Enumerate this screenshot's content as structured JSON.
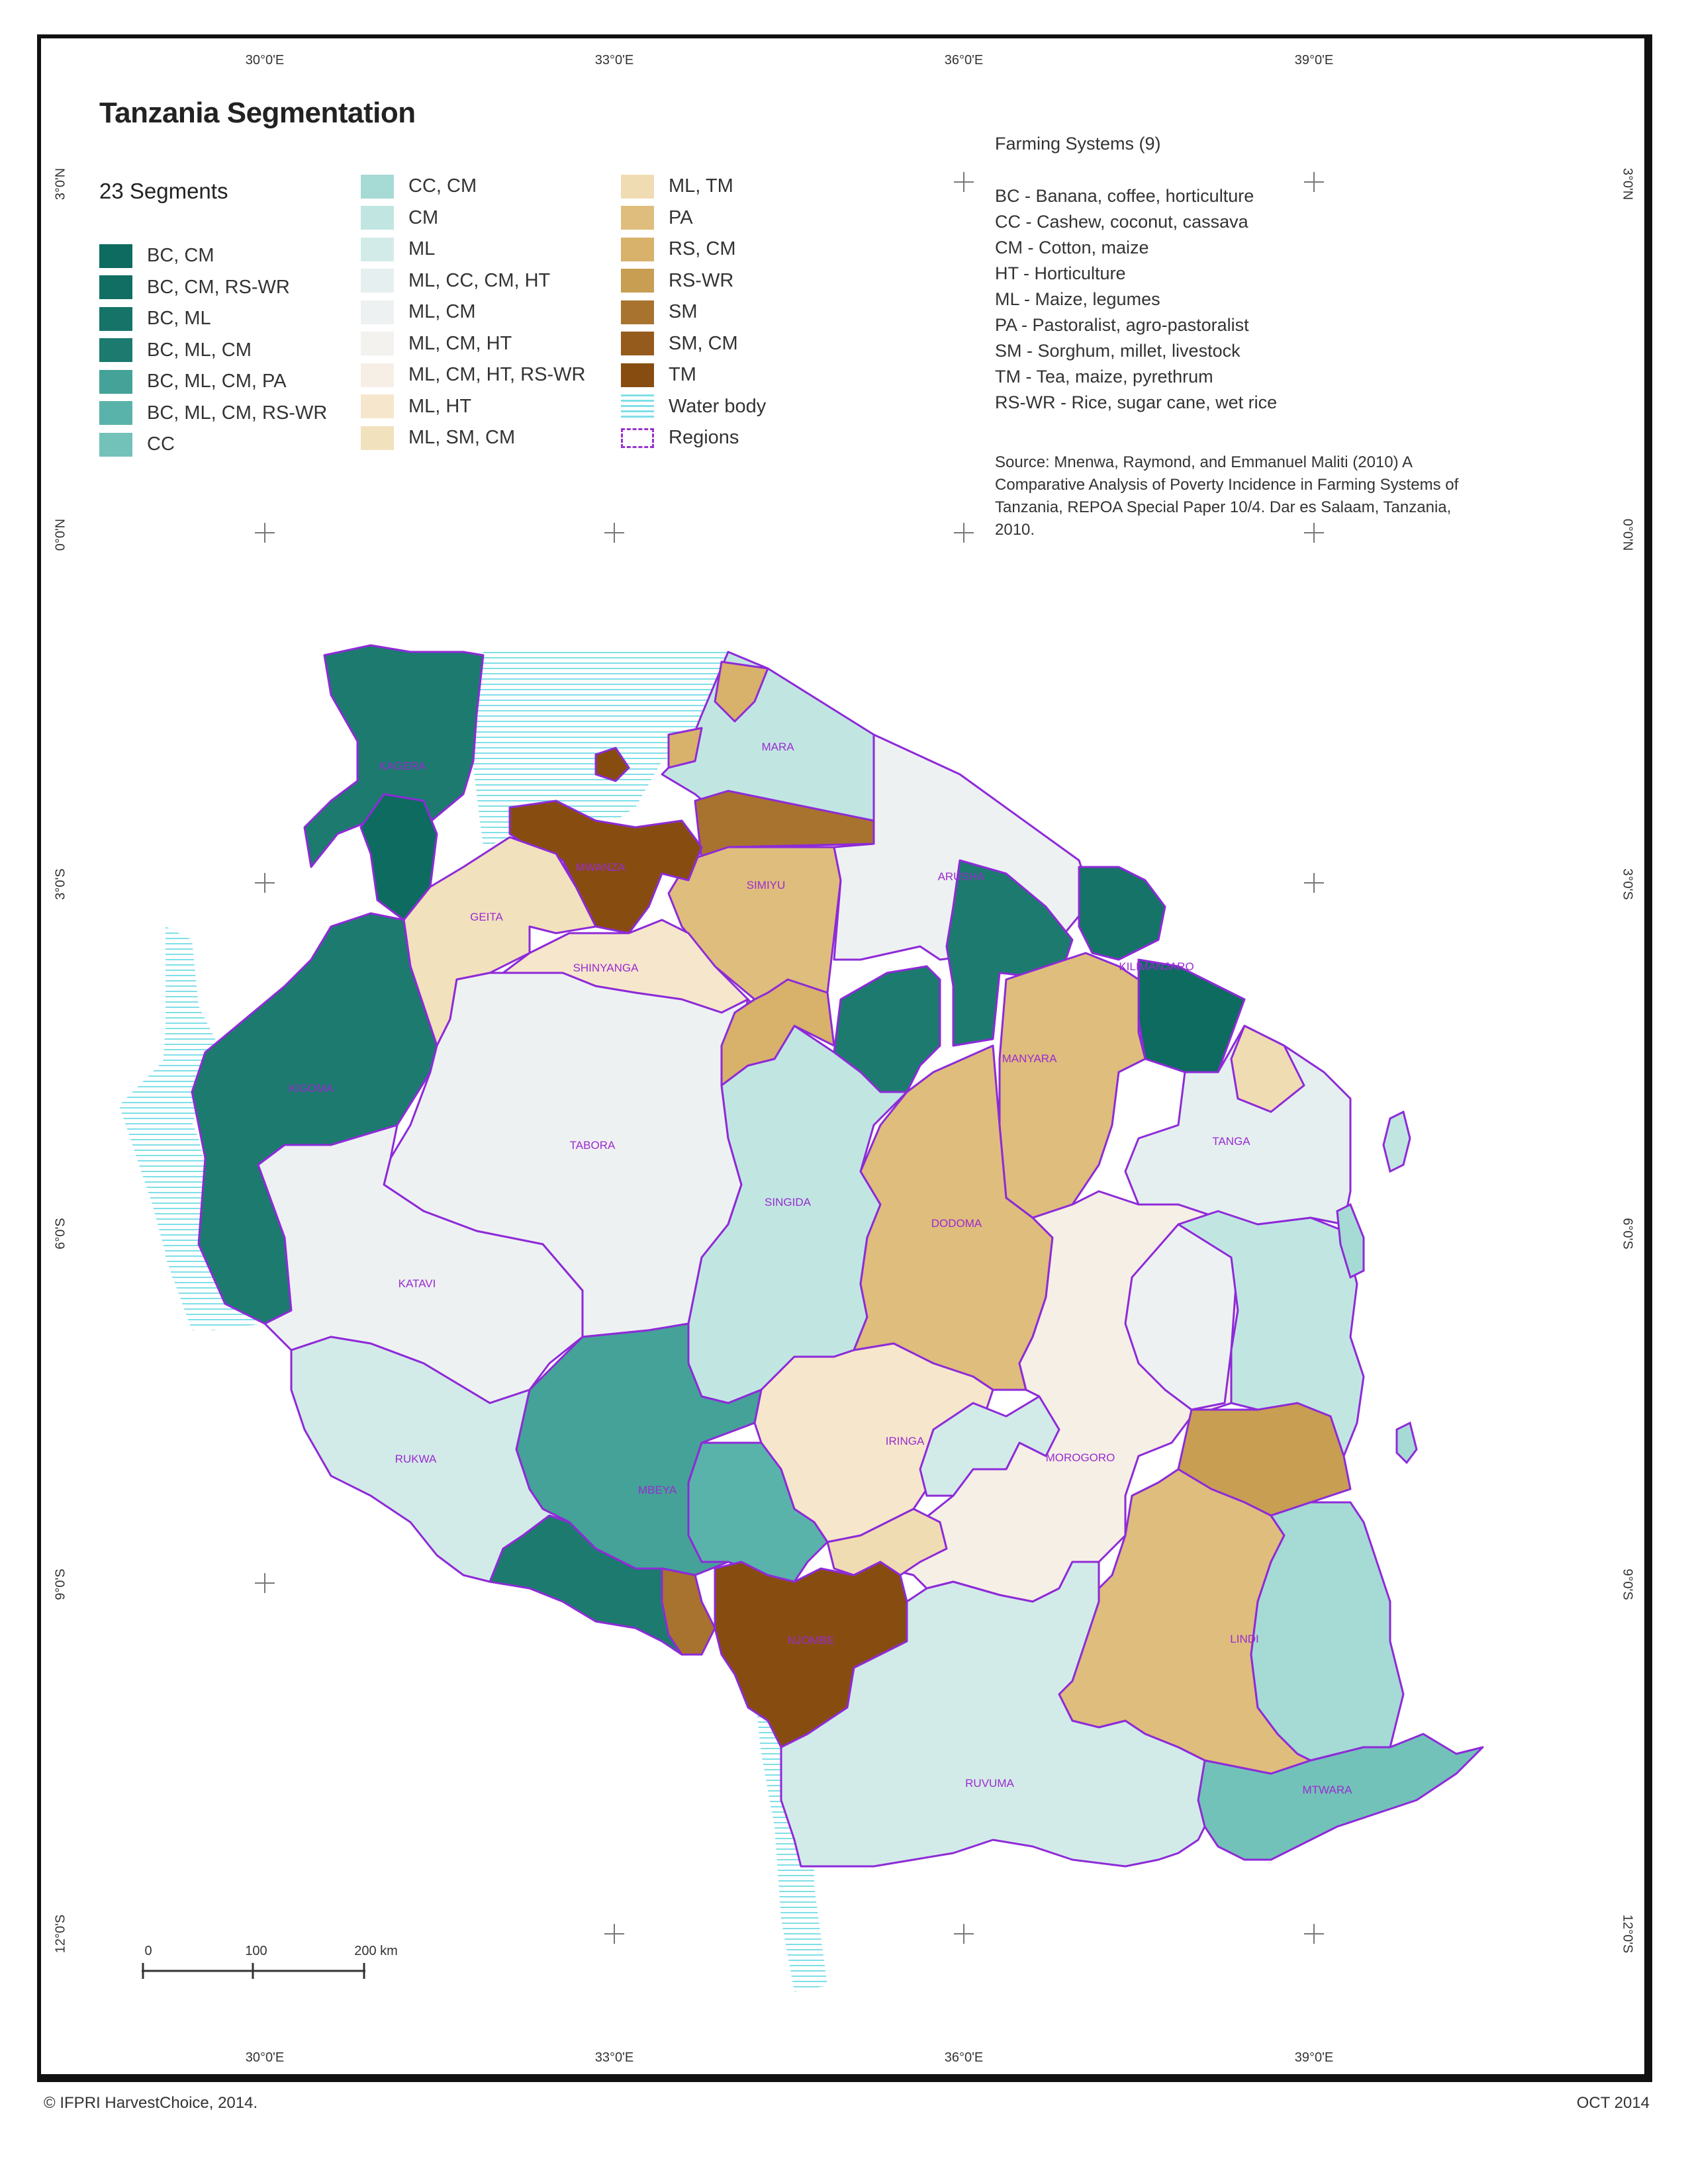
{
  "title": "Tanzania Segmentation",
  "subtitle": "23 Segments",
  "longitude_labels": [
    "30°0'E",
    "33°0'E",
    "36°0'E",
    "39°0'E"
  ],
  "latitude_labels": [
    "3°0'N",
    "0°0'N",
    "3°0'S",
    "6°0'S",
    "9°0'S",
    "12°0'S"
  ],
  "legend": {
    "col1": [
      {
        "label": "BC, CM",
        "color": "#0d6b60"
      },
      {
        "label": "BC, CM, RS-WR",
        "color": "#106e63"
      },
      {
        "label": "BC, ML",
        "color": "#157368"
      },
      {
        "label": "BC, ML, CM",
        "color": "#1c7a6f"
      },
      {
        "label": "BC, ML, CM, PA",
        "color": "#44a298"
      },
      {
        "label": "BC, ML, CM, RS-WR",
        "color": "#5ab3aa"
      },
      {
        "label": "CC",
        "color": "#72c2b9"
      }
    ],
    "col2": [
      {
        "label": "CC, CM",
        "color": "#a6dad5"
      },
      {
        "label": "CM",
        "color": "#c1e6e2"
      },
      {
        "label": "ML",
        "color": "#d3ebe8"
      },
      {
        "label": "ML, CC, CM, HT",
        "color": "#e5efef"
      },
      {
        "label": "ML, CM",
        "color": "#eef1f2"
      },
      {
        "label": "ML, CM, HT",
        "color": "#f3f2ef"
      },
      {
        "label": "ML, CM, HT, RS-WR",
        "color": "#f6efe6"
      },
      {
        "label": "ML, HT",
        "color": "#f6e7cc"
      },
      {
        "label": "ML, SM, CM",
        "color": "#f2e1bd"
      }
    ],
    "col3": [
      {
        "label": "ML, TM",
        "color": "#f0dcb2"
      },
      {
        "label": "PA",
        "color": "#dfbd7c"
      },
      {
        "label": "RS, CM",
        "color": "#d8b16b"
      },
      {
        "label": "RS-WR",
        "color": "#c89e53"
      },
      {
        "label": "SM",
        "color": "#a8732f"
      },
      {
        "label": "SM, CM",
        "color": "#955b1c"
      },
      {
        "label": "TM",
        "color": "#874d10"
      },
      {
        "label": "Water body",
        "icon": "water-hatch"
      },
      {
        "label": "Regions",
        "icon": "dashed-region-outline"
      }
    ]
  },
  "farming_systems": {
    "heading": "Farming Systems (9)",
    "items": [
      "BC - Banana, coffee, horticulture",
      "CC - Cashew, coconut, cassava",
      "CM - Cotton, maize",
      "HT - Horticulture",
      "ML - Maize, legumes",
      "PA - Pastoralist, agro-pastoralist",
      "SM - Sorghum, millet, livestock",
      "TM - Tea, maize, pyrethrum",
      "RS-WR - Rice, sugar cane, wet rice"
    ]
  },
  "source_text": "Source: Mnenwa, Raymond, and Emmanuel Maliti (2010) A Comparative Analysis of Poverty Incidence in Farming Systems of Tanzania, REPOA Special Paper 10/4. Dar es Salaam, Tanzania, 2010.",
  "regions": [
    "KAGERA",
    "MARA",
    "MWANZA",
    "SIMIYU",
    "GEITA",
    "SHINYANGA",
    "ARUSHA",
    "KILIMANJARO",
    "KIGOMA",
    "TABORA",
    "MANYARA",
    "TANGA",
    "SINGIDA",
    "DODOMA",
    "KATAVI",
    "IRINGA",
    "MOROGORO",
    "RUKWA",
    "MBEYA",
    "NJOMBE",
    "LINDI",
    "RUVUMA",
    "MTWARA"
  ],
  "scale_bar": {
    "labels": [
      "0",
      "100",
      "200 km"
    ]
  },
  "footer": {
    "left": "© IFPRI HarvestChoice, 2014.",
    "right": "OCT 2014"
  }
}
